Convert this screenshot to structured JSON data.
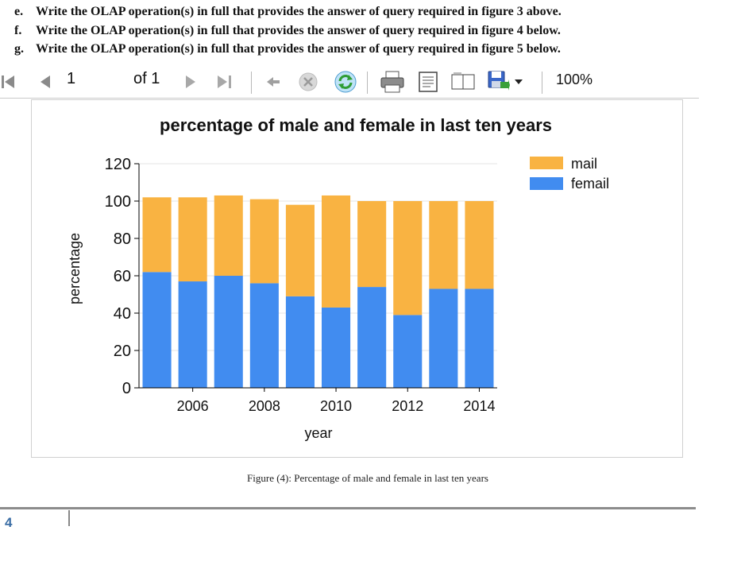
{
  "questions": [
    {
      "letter": "e.",
      "text": "Write the OLAP operation(s) in full that provides the answer of query required in figure 3 above."
    },
    {
      "letter": "f.",
      "text": "Write the OLAP operation(s) in full that provides the answer of query required in figure 4 below."
    },
    {
      "letter": "g.",
      "text": "Write the OLAP operation(s) in full that provides the answer of query required in figure 5 below."
    }
  ],
  "toolbar": {
    "page_current": "1",
    "page_of": "of 1",
    "zoom": "100%",
    "icons": [
      "first-page-icon",
      "prev-page-icon",
      "next-page-icon",
      "last-page-icon",
      "back-icon",
      "stop-icon",
      "refresh-icon",
      "print-icon",
      "print-layout-icon",
      "page-setup-icon",
      "export-icon",
      "dropdown-arrow-icon"
    ]
  },
  "caption": "Figure (4): Percentage of male and female in last ten years",
  "footer": {
    "page_number": "4"
  },
  "colors": {
    "mail": "#f9b342",
    "femail": "#418cf0",
    "axis": "#000000",
    "grid": "#e6e6e6"
  },
  "chart_data": {
    "type": "bar",
    "stacked": true,
    "title": "percentage of male and female in last ten years",
    "xlabel": "year",
    "ylabel": "percentage",
    "categories": [
      2005,
      2006,
      2007,
      2008,
      2009,
      2010,
      2011,
      2012,
      2013,
      2014
    ],
    "x_tick_labels": [
      "2006",
      "2008",
      "2010",
      "2012",
      "2014"
    ],
    "x_tick_values": [
      2006,
      2008,
      2010,
      2012,
      2014
    ],
    "ylim": [
      0,
      120
    ],
    "y_ticks": [
      "0",
      "20",
      "40",
      "60",
      "80",
      "100",
      "120"
    ],
    "legend_position": "top-right",
    "series": [
      {
        "name": "femail",
        "values": [
          62,
          57,
          60,
          56,
          49,
          43,
          54,
          39,
          53,
          53
        ]
      },
      {
        "name": "mail",
        "values": [
          40,
          45,
          43,
          45,
          49,
          60,
          46,
          61,
          47,
          47
        ]
      }
    ]
  }
}
